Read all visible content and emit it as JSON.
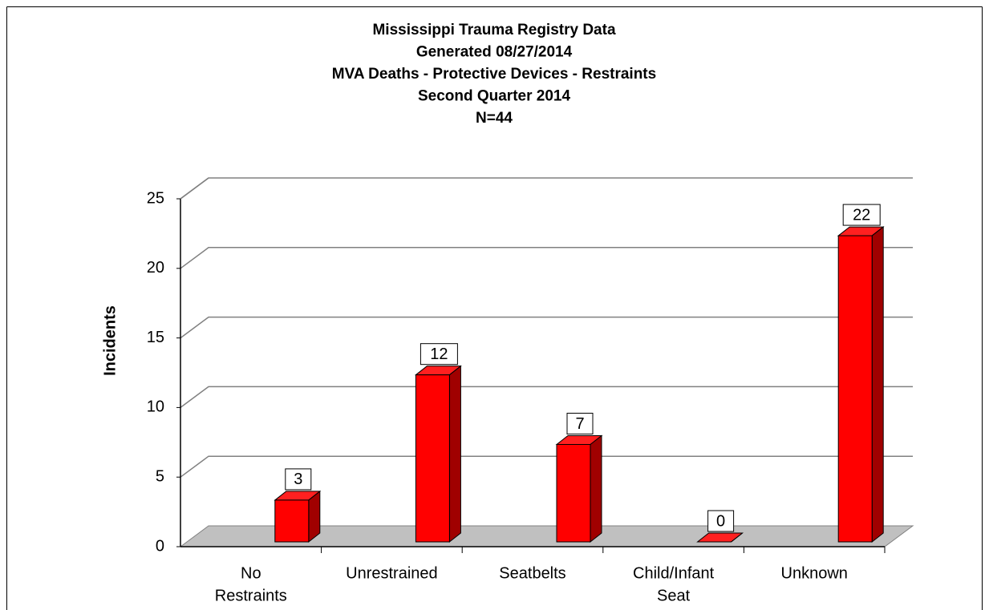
{
  "chart_data": {
    "type": "bar3d",
    "title": [
      "Mississippi Trauma Registry Data",
      "Generated 08/27/2014",
      "MVA Deaths - Protective Devices - Restraints",
      "Second Quarter 2014",
      "N=44"
    ],
    "y_label": "Incidents",
    "categories": [
      [
        "No",
        "Restraints"
      ],
      [
        "Unrestrained"
      ],
      [
        "Seatbelts"
      ],
      [
        "Child/Infant",
        "Seat"
      ],
      [
        "Unknown"
      ]
    ],
    "values": [
      3,
      12,
      7,
      0,
      22
    ],
    "color": "#ff0000",
    "ylim": [
      0,
      25
    ],
    "yticks": [
      0,
      5,
      10,
      15,
      20,
      25
    ],
    "grid": true
  }
}
